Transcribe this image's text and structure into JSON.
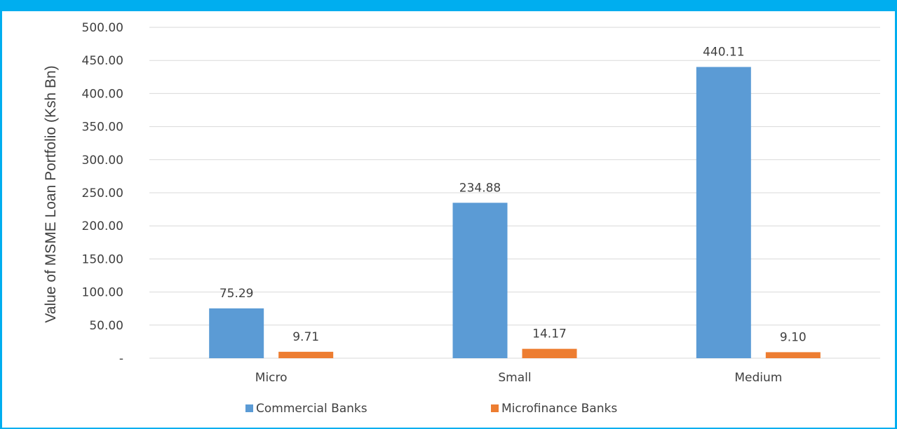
{
  "chart_data": {
    "type": "bar",
    "title": "",
    "xlabel": "",
    "ylabel": "Value of MSME Loan Portfolio (Ksh Bn)",
    "categories": [
      "Micro",
      "Small",
      "Medium"
    ],
    "series": [
      {
        "name": "Commercial Banks",
        "values": [
          75.29,
          234.88,
          440.11
        ],
        "labels": [
          "75.29",
          "234.88",
          "440.11"
        ],
        "color": "#5b9bd5"
      },
      {
        "name": "Microfinance Banks",
        "values": [
          9.71,
          14.17,
          9.1
        ],
        "labels": [
          "9.71",
          "14.17",
          "9.10"
        ],
        "color": "#ed7d31"
      }
    ],
    "ylim": [
      0,
      500
    ],
    "yticks": [
      0,
      50,
      100,
      150,
      200,
      250,
      300,
      350,
      400,
      450,
      500
    ],
    "ytick_labels": [
      "-",
      "50.00",
      "100.00",
      "150.00",
      "200.00",
      "250.00",
      "300.00",
      "350.00",
      "400.00",
      "450.00",
      "500.00"
    ],
    "grid": true,
    "legend_position": "bottom"
  },
  "colors": {
    "frame_accent": "#00aeef",
    "gridline": "#d9d9d9",
    "text": "#404040"
  }
}
